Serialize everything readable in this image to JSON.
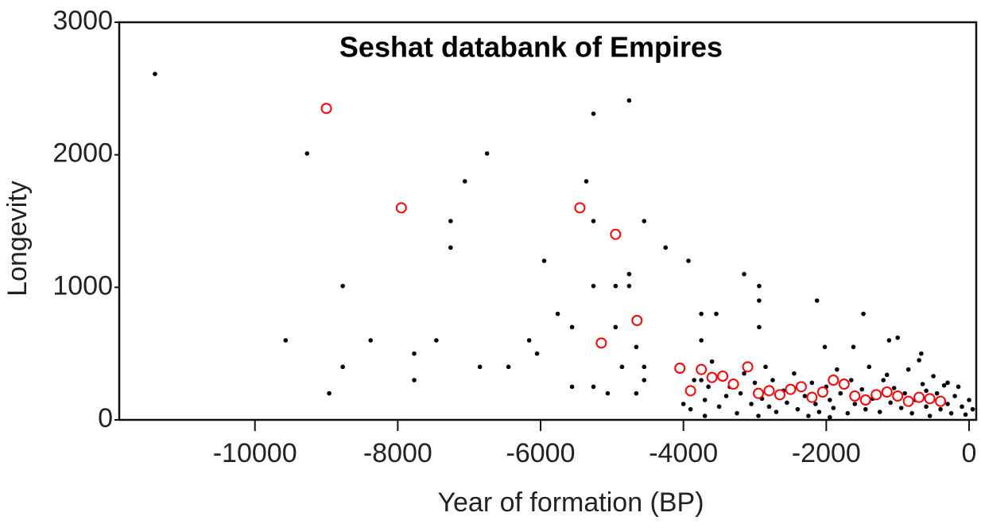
{
  "chart_data": {
    "type": "scatter",
    "title": "Seshat databank of Empires",
    "x_label": "Year of formation  (BP)",
    "y_label": "Longevity",
    "xlim": [
      -11900,
      100
    ],
    "ylim": [
      0,
      3000
    ],
    "xticks": [
      -10000,
      -8000,
      -6000,
      -4000,
      -2000,
      0
    ],
    "yticks": [
      0,
      1000,
      2000,
      3000
    ],
    "series": [
      {
        "color": "#000000",
        "fill": "#000000",
        "x": [
          -11400,
          -9270,
          -9570,
          -8770,
          -8770,
          -8960,
          -8380,
          -7770,
          -7770,
          -7460,
          -7260,
          -7260,
          -7060,
          -6750,
          -6850,
          -6450,
          -6160,
          -6050,
          -5950,
          -5760,
          -5560,
          -5560,
          -5360,
          -5260,
          -5260,
          -5260,
          -5260,
          -5060,
          -4950,
          -4950,
          -4860,
          -4760,
          -4760,
          -4760,
          -4660,
          -4550,
          -4550,
          -4550,
          -4660,
          -4250,
          -3930,
          -3750,
          -3750,
          -3750,
          -3540,
          -3150,
          -2940,
          -2940,
          -2940,
          -2130,
          -2020,
          -1620,
          -1480,
          -1120,
          -670,
          -4000,
          -3900,
          -3850,
          -3700,
          -3650,
          -3600,
          -3500,
          -3400,
          -3350,
          -3250,
          -3200,
          -3150,
          -3050,
          -3000,
          -2950,
          -2900,
          -2800,
          -2750,
          -2700,
          -2600,
          -2550,
          -2450,
          -2400,
          -2300,
          -2250,
          -2200,
          -2150,
          -2100,
          -2000,
          -1950,
          -1900,
          -1850,
          -1800,
          -1700,
          -1650,
          -1600,
          -1500,
          -1450,
          -1400,
          -1350,
          -1250,
          -1200,
          -1100,
          -1050,
          -1000,
          -950,
          -900,
          -850,
          -800,
          -750,
          -700,
          -650,
          -600,
          -550,
          -500,
          -450,
          -400,
          -350,
          -300,
          -250,
          -200,
          -150,
          -100,
          -50,
          0,
          50,
          -3700,
          -2850,
          -1950,
          -1150,
          -600,
          -300
        ],
        "values": [
          2610,
          2010,
          600,
          1010,
          400,
          200,
          600,
          500,
          300,
          600,
          1500,
          1300,
          1800,
          2010,
          400,
          400,
          600,
          500,
          1200,
          800,
          700,
          250,
          1800,
          2310,
          1500,
          1010,
          250,
          200,
          1010,
          700,
          400,
          2410,
          1100,
          1010,
          550,
          1500,
          400,
          300,
          200,
          1300,
          1200,
          800,
          600,
          300,
          800,
          1100,
          1010,
          900,
          700,
          900,
          550,
          550,
          800,
          600,
          500,
          120,
          80,
          300,
          150,
          250,
          440,
          100,
          180,
          250,
          50,
          200,
          350,
          120,
          280,
          30,
          160,
          100,
          300,
          60,
          220,
          130,
          350,
          80,
          180,
          30,
          280,
          120,
          60,
          250,
          150,
          90,
          380,
          200,
          50,
          300,
          120,
          230,
          80,
          400,
          160,
          60,
          300,
          130,
          240,
          620,
          90,
          200,
          380,
          50,
          150,
          450,
          270,
          100,
          30,
          330,
          200,
          80,
          260,
          120,
          50,
          180,
          250,
          100,
          40,
          150,
          80,
          30,
          400,
          20,
          340,
          220,
          280
        ]
      },
      {
        "color": "#ff0000",
        "fill": "#ffffff",
        "x": [
          -9000,
          -7950,
          -5450,
          -4950,
          -4650,
          -5150,
          -4050,
          -3900,
          -3750,
          -3600,
          -3450,
          -3300,
          -3100,
          -2950,
          -2800,
          -2650,
          -2500,
          -2350,
          -2200,
          -2050,
          -1900,
          -1750,
          -1600,
          -1450,
          -1300,
          -1150,
          -1000,
          -850,
          -700,
          -550,
          -400
        ],
        "values": [
          2350,
          1600,
          1600,
          1400,
          750,
          580,
          390,
          220,
          380,
          320,
          330,
          270,
          400,
          200,
          220,
          190,
          230,
          250,
          170,
          210,
          300,
          270,
          180,
          150,
          190,
          210,
          180,
          140,
          170,
          160,
          140
        ]
      }
    ]
  }
}
